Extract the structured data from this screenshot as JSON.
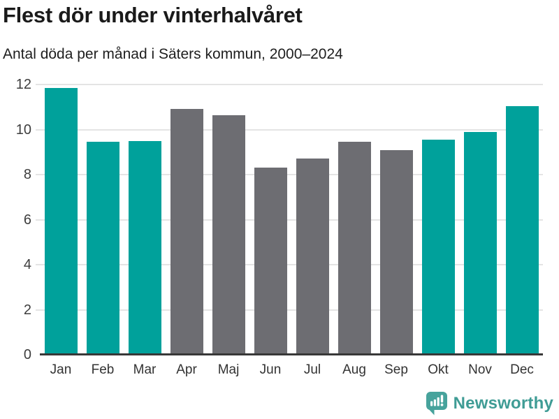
{
  "header": {
    "title": "Flest dör under vinterhalvåret",
    "subtitle": "Antal döda per månad i Säters kommun, 2000–2024"
  },
  "chart_data": {
    "type": "bar",
    "title": "Flest dör under vinterhalvåret",
    "subtitle": "Antal döda per månad i Säters kommun, 2000–2024",
    "categories": [
      "Jan",
      "Feb",
      "Mar",
      "Apr",
      "Maj",
      "Jun",
      "Jul",
      "Aug",
      "Sep",
      "Okt",
      "Nov",
      "Dec"
    ],
    "values": [
      11.85,
      9.45,
      9.5,
      10.9,
      10.65,
      8.3,
      8.7,
      9.45,
      9.1,
      9.55,
      9.9,
      11.05
    ],
    "bar_styles": [
      "highlight",
      "highlight",
      "highlight",
      "default",
      "default",
      "default",
      "default",
      "default",
      "default",
      "highlight",
      "highlight",
      "highlight"
    ],
    "xlabel": "",
    "ylabel": "",
    "ylim": [
      0,
      12
    ],
    "yticks": [
      0,
      2,
      4,
      6,
      8,
      10,
      12
    ],
    "grid": true,
    "legend_position": "none",
    "colors": {
      "highlight": "#00a19b",
      "default": "#6d6d72",
      "gridline": "#e4e4e4",
      "axis": "#383838",
      "tick_label": "#3d3d3d"
    }
  },
  "footer": {
    "brand": "Newsworthy",
    "brand_color": "#3f9c95",
    "logo_color": "#47a39c",
    "logo_icon": "newsworthy-speech-bubble-chart-icon"
  }
}
